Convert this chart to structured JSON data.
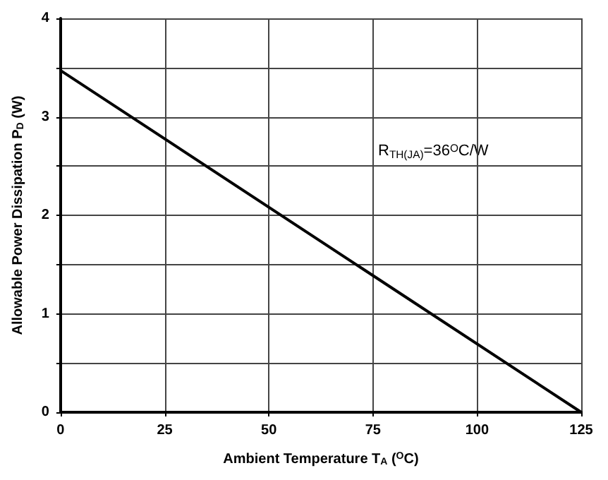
{
  "chart_data": {
    "type": "line",
    "xlabel": "Ambient Temperature T$_{A}$ ($^{O}$C)",
    "ylabel": "Allowable Power Dissipation P$_{D}$ (W)",
    "annotations": [
      "R$_{TH(JA)}$=36$^{O}$C/W"
    ],
    "x": [
      0,
      125
    ],
    "series": [
      {
        "color": "#000000",
        "values": [
          3.47,
          0
        ]
      }
    ],
    "xlim": [
      0,
      125
    ],
    "xticks": [
      0,
      25,
      50,
      75,
      100,
      125
    ],
    "ylim": [
      0,
      4
    ],
    "yticks": [
      0,
      {
        "value": 0.5,
        "label": null
      },
      1,
      {
        "value": 1.5,
        "label": null
      },
      2,
      {
        "value": 2.5,
        "label": null
      },
      3,
      {
        "value": 3.5,
        "label": null
      },
      4
    ],
    "grid": true,
    "marker": "none",
    "line_style": "solid"
  }
}
